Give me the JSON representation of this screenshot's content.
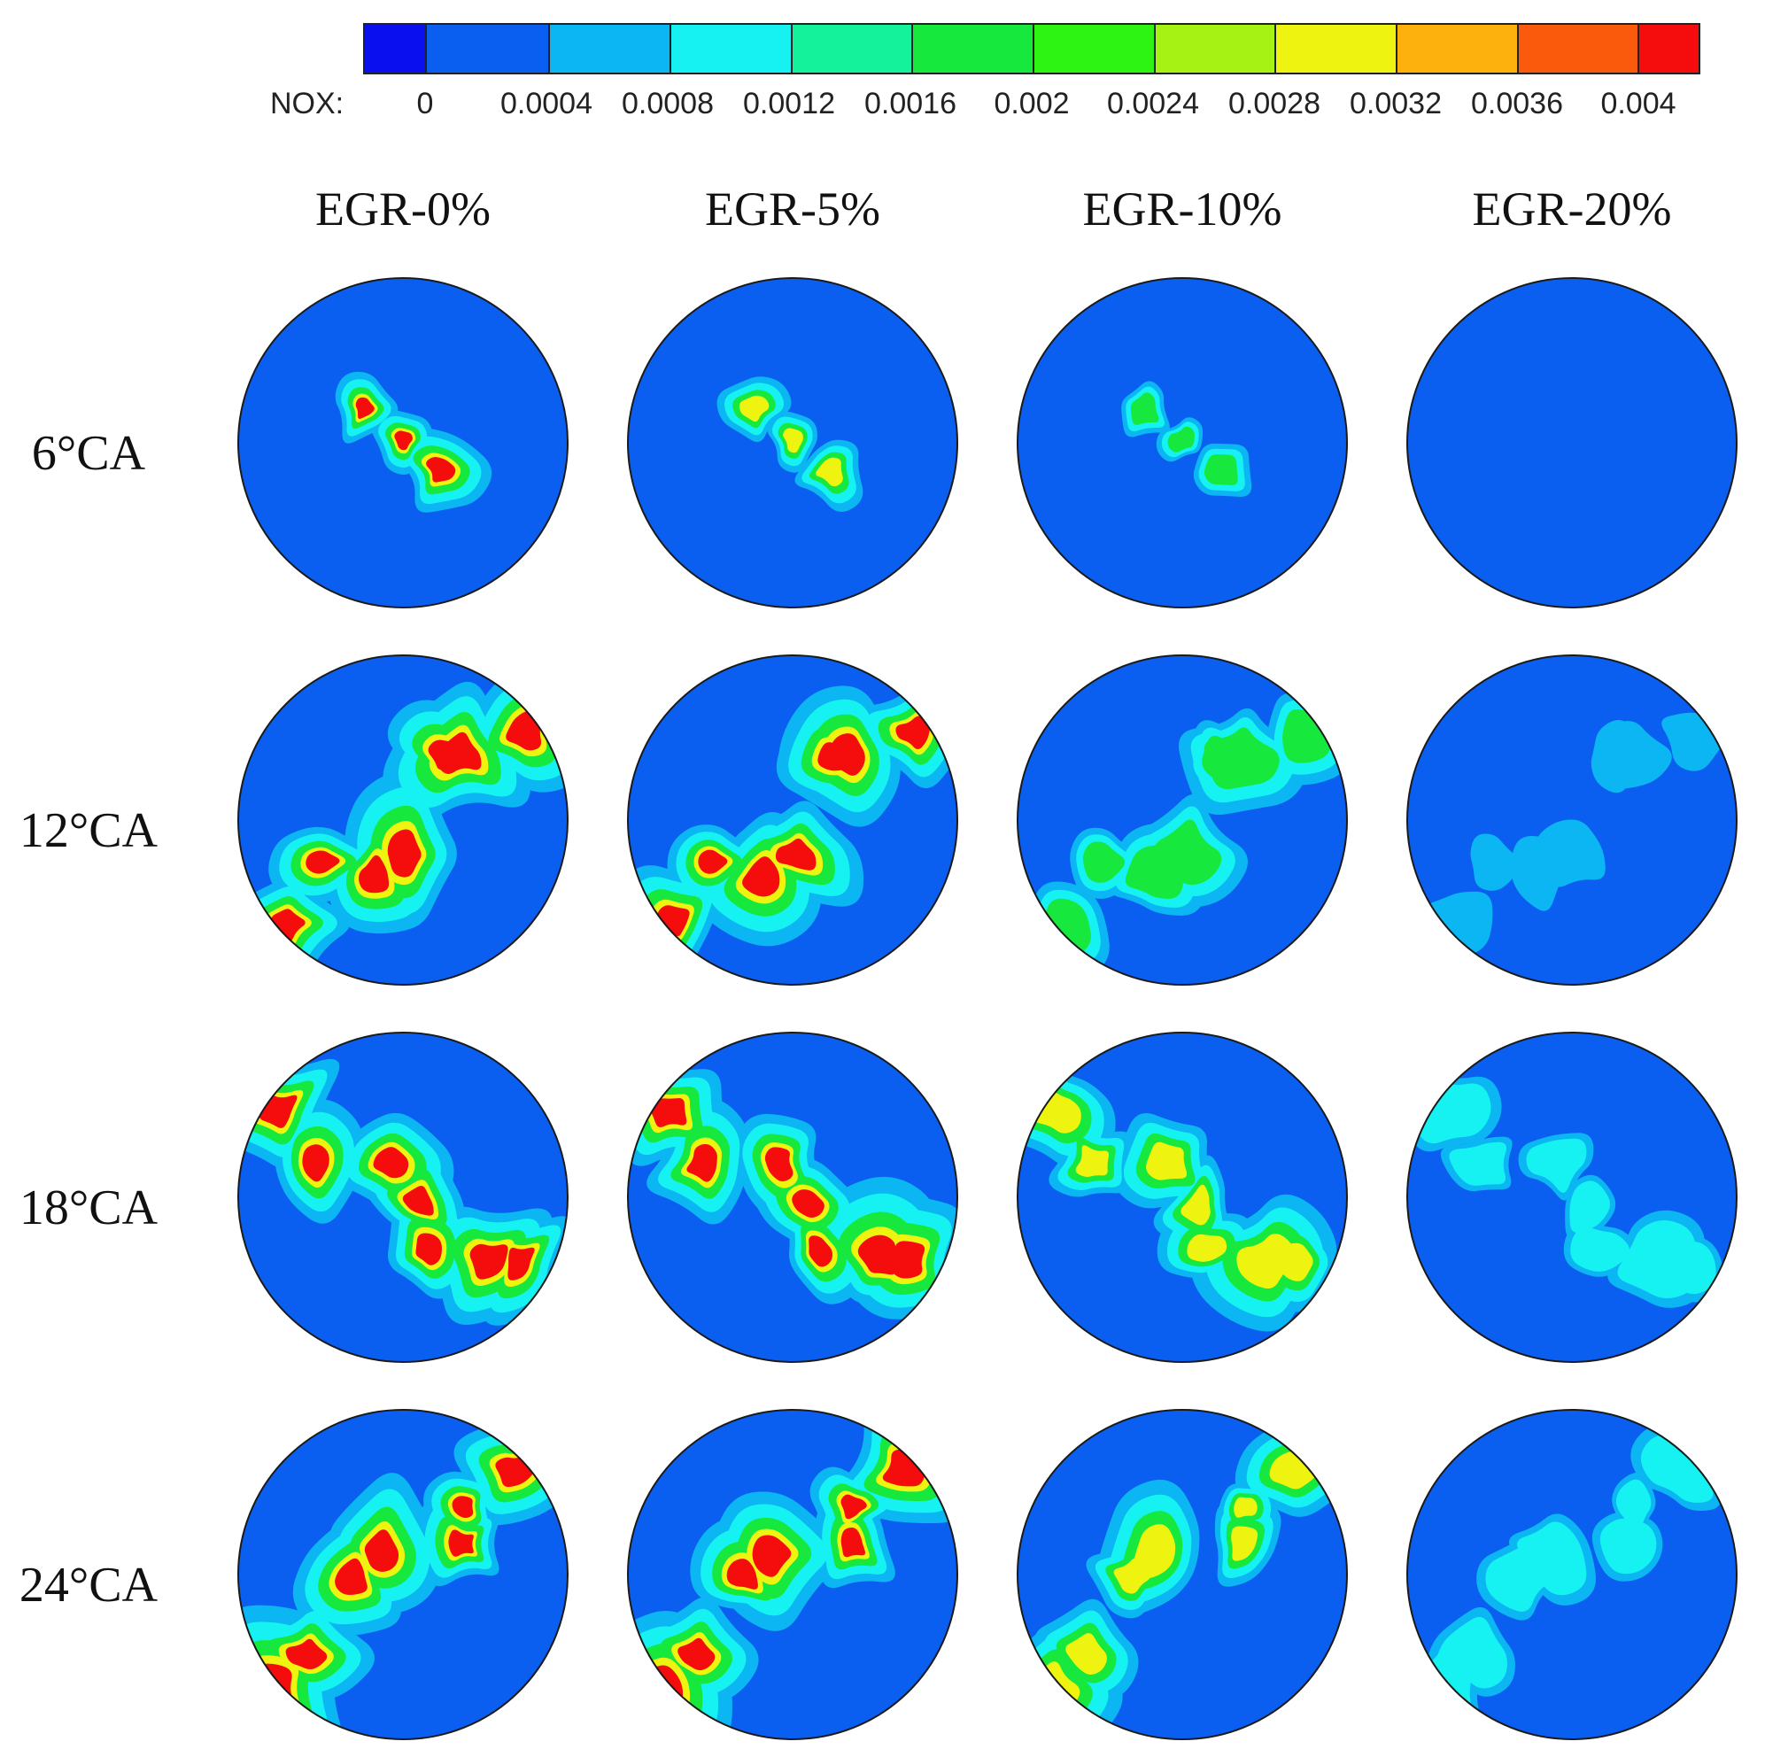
{
  "legend": {
    "variable_label": "NOX:",
    "ticks": [
      "0",
      "0.0004",
      "0.0008",
      "0.0012",
      "0.0016",
      "0.002",
      "0.0024",
      "0.0028",
      "0.0032",
      "0.0036",
      "0.004"
    ],
    "band_colors": [
      "#0a0ff0",
      "#0b5ff0",
      "#0bb6f2",
      "#16f2f2",
      "#15f29c",
      "#16e83e",
      "#2ef414",
      "#a5f214",
      "#eef410",
      "#fcb10c",
      "#fa5a0c",
      "#f50c0c"
    ]
  },
  "columns": [
    "EGR-0%",
    "EGR-5%",
    "EGR-10%",
    "EGR-20%"
  ],
  "rows": [
    "6°CA",
    "12°CA",
    "18°CA",
    "24°CA"
  ],
  "colors": {
    "background": "#0b5ff0",
    "low": "#0bb6f2",
    "cyan": "#16f2f2",
    "green": "#16e83e",
    "yellow": "#eef410",
    "red": "#f50c0c",
    "outline": "#1a1a1a"
  },
  "panels": [
    [
      0.9,
      0.7,
      0.5,
      0.0
    ],
    [
      1.0,
      0.9,
      0.55,
      0.15
    ],
    [
      1.0,
      0.9,
      0.7,
      0.35
    ],
    [
      1.0,
      0.95,
      0.75,
      0.4
    ]
  ]
}
